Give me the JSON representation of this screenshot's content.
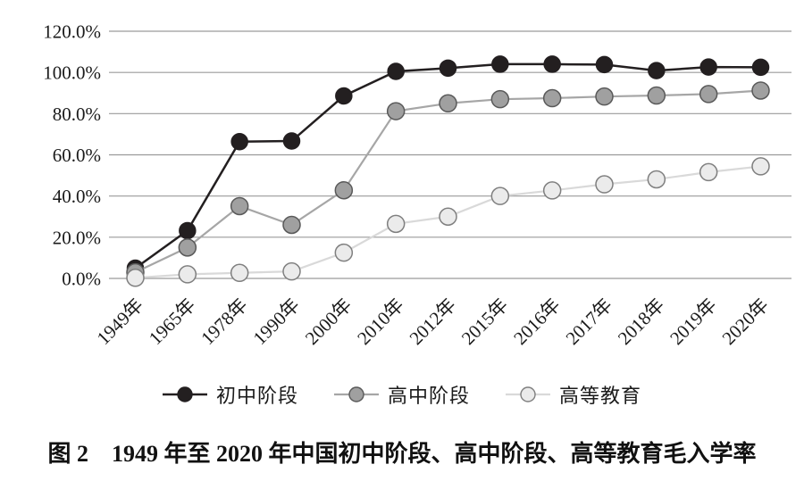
{
  "figure": {
    "caption": "图 2　1949 年至 2020 年中国初中阶段、高中阶段、高等教育毛入学率"
  },
  "chart_data": {
    "type": "line",
    "title": "",
    "xlabel": "",
    "ylabel": "",
    "categories": [
      "1949年",
      "1965年",
      "1978年",
      "1990年",
      "2000年",
      "2010年",
      "2012年",
      "2015年",
      "2016年",
      "2017年",
      "2018年",
      "2019年",
      "2020年"
    ],
    "series": [
      {
        "name": "初中阶段",
        "key": "junior-secondary",
        "values": [
          5.0,
          23.2,
          66.4,
          66.7,
          88.6,
          100.5,
          102.1,
          104.0,
          104.0,
          103.8,
          100.9,
          102.6,
          102.5
        ],
        "line_color": "#231f20",
        "dot_fill": "#231f20",
        "dot_stroke": "#231f20"
      },
      {
        "name": "高中阶段",
        "key": "senior-secondary",
        "values": [
          3.0,
          15.0,
          35.1,
          26.0,
          42.8,
          81.2,
          85.0,
          87.0,
          87.5,
          88.3,
          88.8,
          89.5,
          91.2
        ],
        "line_color": "#a6a6a6",
        "dot_fill": "#a0a0a0",
        "dot_stroke": "#595959"
      },
      {
        "name": "高等教育",
        "key": "higher-education",
        "values": [
          0.3,
          2.0,
          2.7,
          3.4,
          12.5,
          26.5,
          30.0,
          40.0,
          42.7,
          45.7,
          48.1,
          51.6,
          54.4
        ],
        "line_color": "#d9d9d9",
        "dot_fill": "#ebebeb",
        "dot_stroke": "#7f7f7f"
      }
    ],
    "y_ticks": [
      {
        "value": 0,
        "label": "0.0%"
      },
      {
        "value": 20,
        "label": "20.0%"
      },
      {
        "value": 40,
        "label": "40.0%"
      },
      {
        "value": 60,
        "label": "60.0%"
      },
      {
        "value": 80,
        "label": "80.0%"
      },
      {
        "value": 100,
        "label": "100.0%"
      },
      {
        "value": 120,
        "label": "120.0%"
      }
    ],
    "ylim": [
      0,
      120
    ],
    "grid": true,
    "grid_color": "#9a9a9a",
    "text_color": "#1a1a1a",
    "legend_position": "bottom"
  }
}
